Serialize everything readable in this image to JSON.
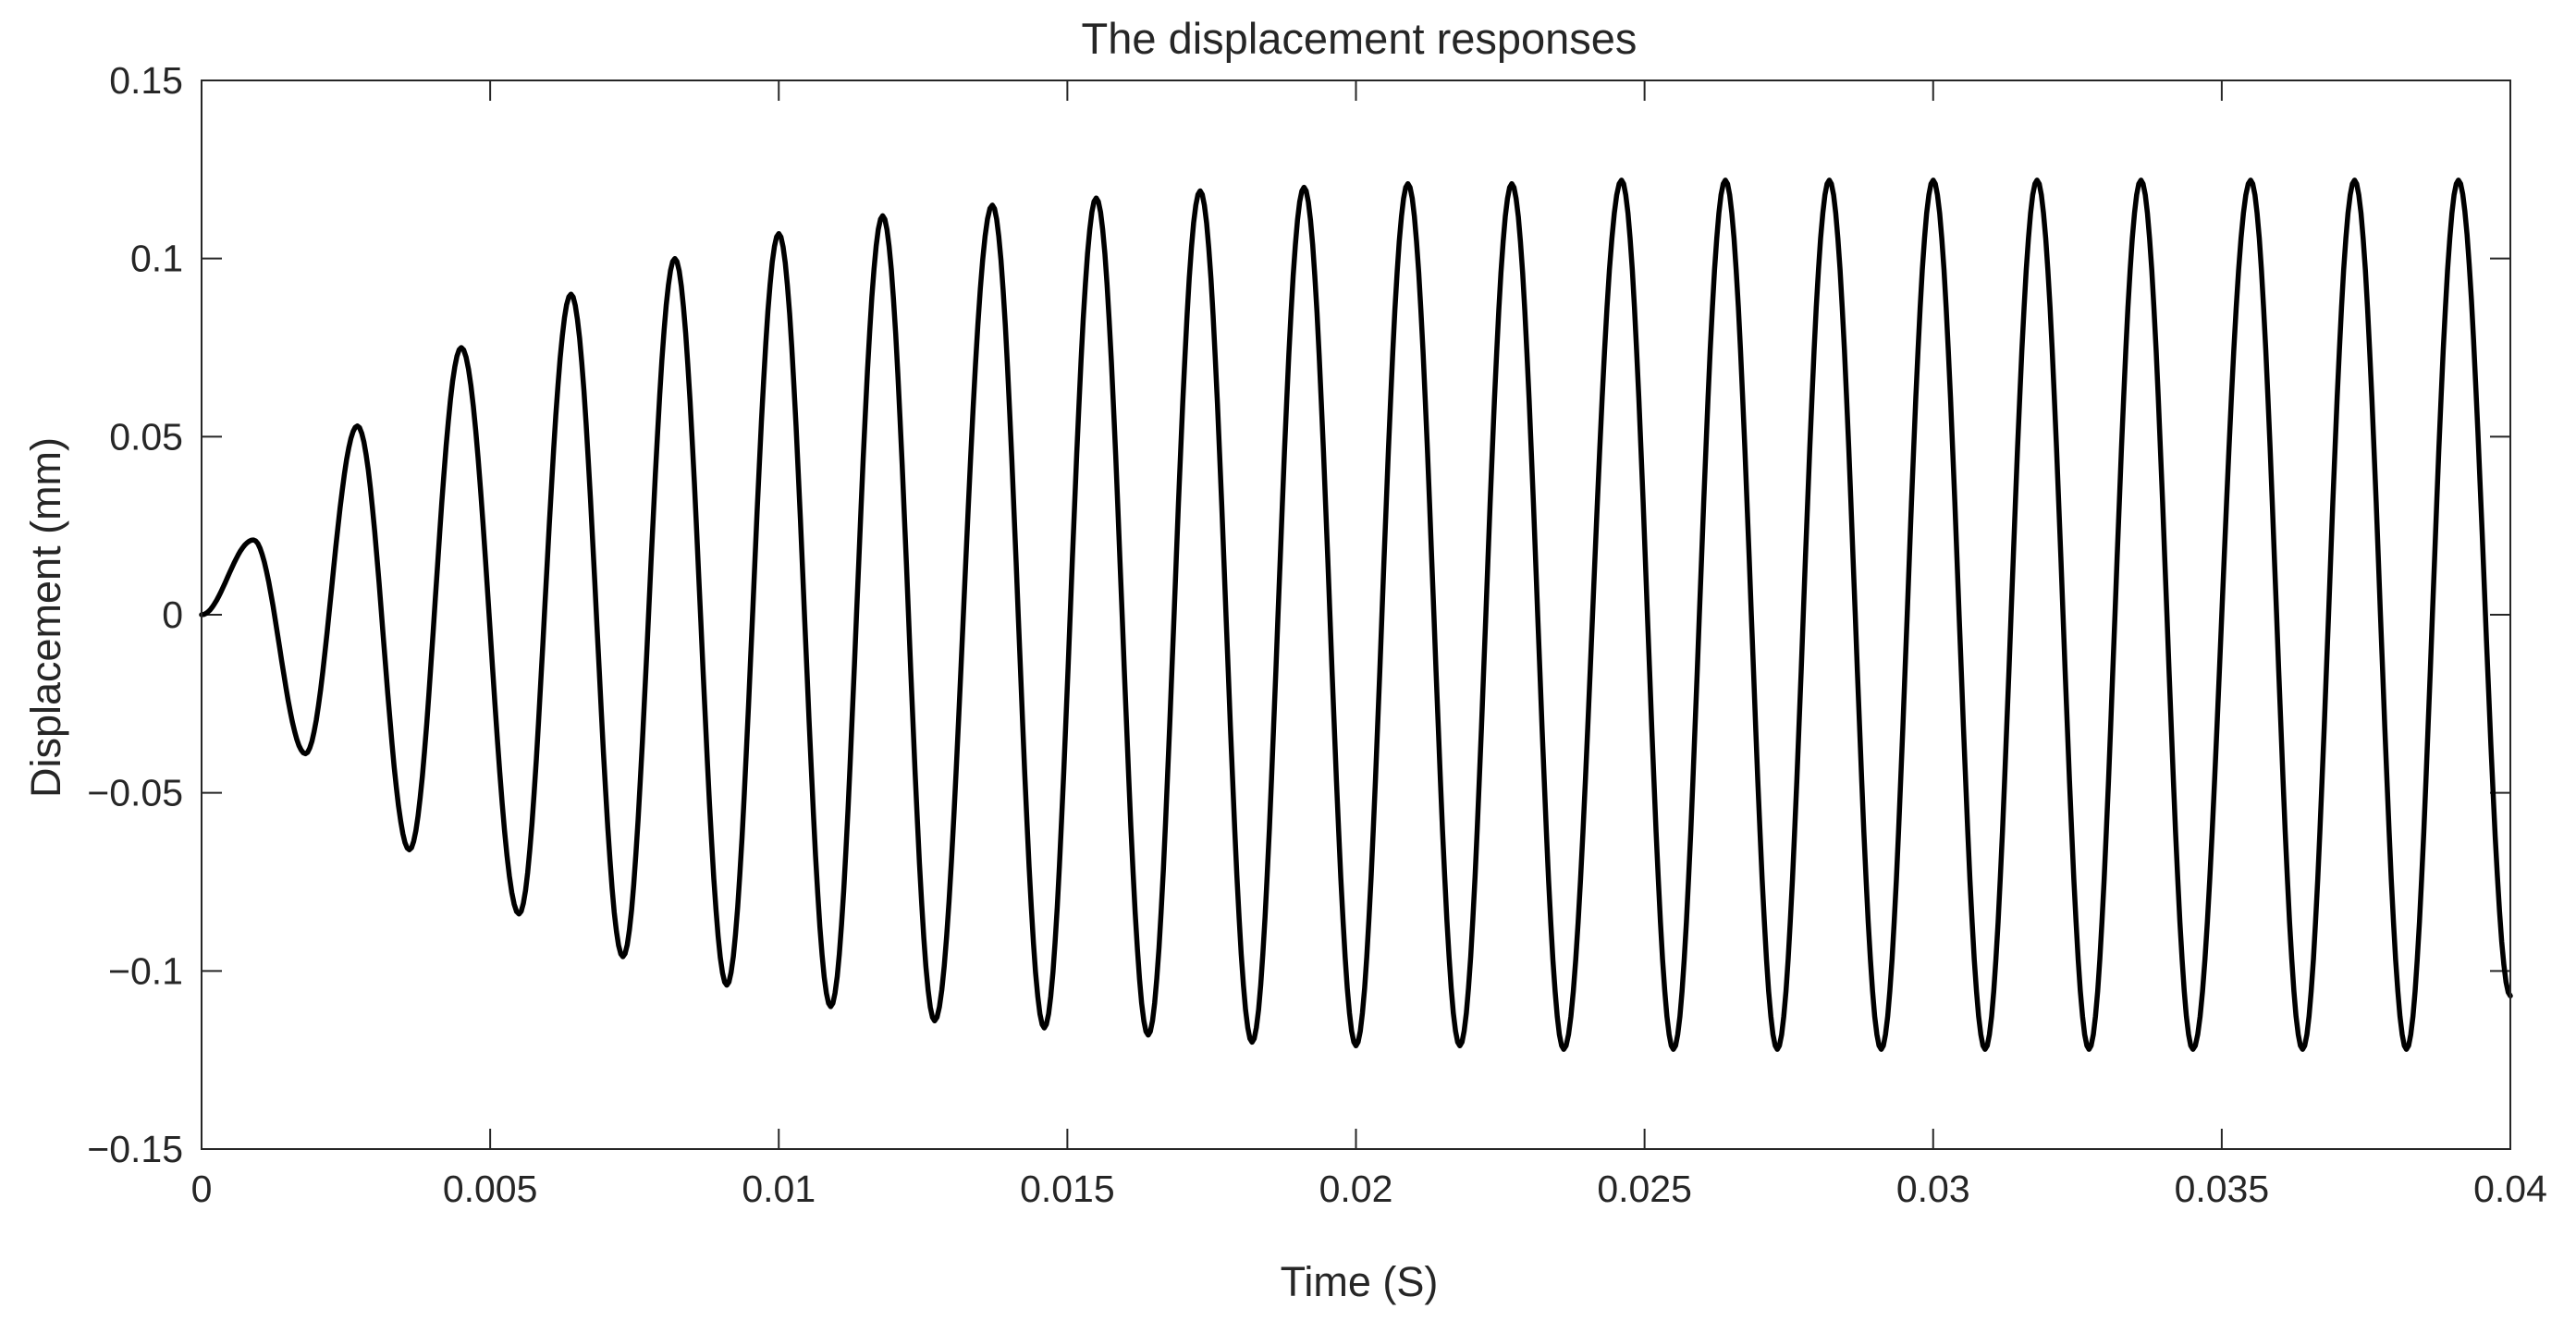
{
  "chart_data": {
    "type": "line",
    "title": "The displacement responses",
    "xlabel": "Time (S)",
    "ylabel": "Displacement (mm)",
    "xlim": [
      0,
      0.04
    ],
    "ylim": [
      -0.15,
      0.15
    ],
    "x_ticks": [
      0,
      0.005,
      0.01,
      0.015,
      0.02,
      0.025,
      0.03,
      0.035,
      0.04
    ],
    "x_tick_labels": [
      "0",
      "0.005",
      "0.01",
      "0.015",
      "0.02",
      "0.025",
      "0.03",
      "0.035",
      "0.04"
    ],
    "y_ticks": [
      -0.15,
      -0.1,
      -0.05,
      0,
      0.05,
      0.1,
      0.15
    ],
    "y_tick_labels": [
      "−0.15",
      "−0.1",
      "−0.05",
      "0",
      "0.05",
      "0.1",
      "0.15"
    ],
    "grid": false,
    "box": true,
    "line_color": "#000000",
    "axis_color": "#262626",
    "series": [
      {
        "x": [
          0,
          0.0009,
          0.0018,
          0.0027,
          0.0036,
          0.0045,
          0.0055,
          0.0064,
          0.0073,
          0.0082,
          0.0091,
          0.01,
          0.0109,
          0.0118,
          0.0127,
          0.0137,
          0.0146,
          0.0155,
          0.0164,
          0.0173,
          0.0182,
          0.0191,
          0.02,
          0.0209,
          0.0218,
          0.0227,
          0.0236,
          0.0246,
          0.0255,
          0.0264,
          0.0273,
          0.0282,
          0.0291,
          0.03,
          0.0309,
          0.0318,
          0.0327,
          0.0336,
          0.0345,
          0.0355,
          0.0364,
          0.0373,
          0.0382,
          0.0391,
          0.04
        ],
        "y": [
          0,
          0.021,
          -0.039,
          0.053,
          -0.066,
          0.075,
          -0.084,
          0.09,
          -0.096,
          0.1,
          -0.104,
          0.107,
          -0.11,
          0.112,
          -0.114,
          0.115,
          -0.116,
          0.117,
          -0.118,
          0.119,
          -0.12,
          0.12,
          -0.121,
          0.121,
          -0.121,
          0.121,
          -0.122,
          0.122,
          -0.122,
          0.122,
          -0.122,
          0.122,
          -0.122,
          0.122,
          -0.122,
          0.122,
          -0.122,
          0.122,
          -0.122,
          0.122,
          -0.122,
          0.122,
          -0.122,
          0.122,
          -0.107
        ]
      }
    ]
  }
}
